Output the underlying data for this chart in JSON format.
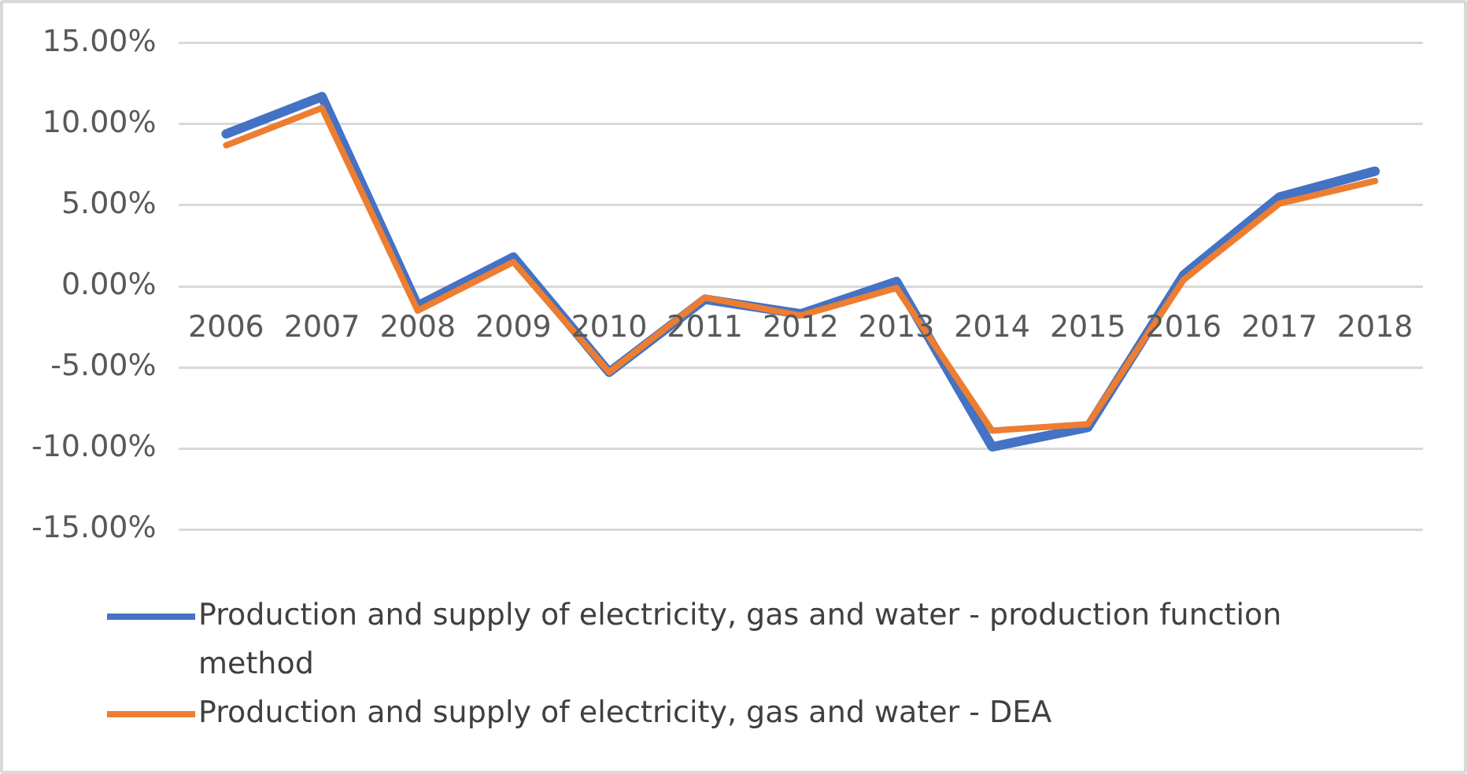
{
  "chart_data": {
    "type": "line",
    "categories": [
      "2006",
      "2007",
      "2008",
      "2009",
      "2010",
      "2011",
      "2012",
      "2013",
      "2014",
      "2015",
      "2016",
      "2017",
      "2018"
    ],
    "series": [
      {
        "name": "Production and supply of electricity, gas and water - production function method",
        "color": "#4472c4",
        "values": [
          9.4,
          11.7,
          -1.2,
          1.8,
          -5.3,
          -0.8,
          -1.7,
          0.3,
          -9.9,
          -8.7,
          0.7,
          5.5,
          7.1
        ]
      },
      {
        "name": "Production and supply of electricity, gas and water - DEA",
        "color": "#ed7d31",
        "values": [
          8.7,
          11.0,
          -1.5,
          1.5,
          -5.3,
          -0.7,
          -1.8,
          -0.1,
          -8.9,
          -8.5,
          0.4,
          5.1,
          6.5
        ]
      }
    ],
    "ylim": [
      -15,
      15
    ],
    "yticks": [
      {
        "value": -15,
        "label": "-15.00%"
      },
      {
        "value": -10,
        "label": "-10.00%"
      },
      {
        "value": -5,
        "label": "-5.00%"
      },
      {
        "value": 0,
        "label": "0.00%"
      },
      {
        "value": 5,
        "label": "5.00%"
      },
      {
        "value": 10,
        "label": "10.00%"
      },
      {
        "value": 15,
        "label": "15.00%"
      }
    ],
    "grid": "y",
    "legend": "bottom",
    "marker": "none",
    "line_style": "solid"
  }
}
